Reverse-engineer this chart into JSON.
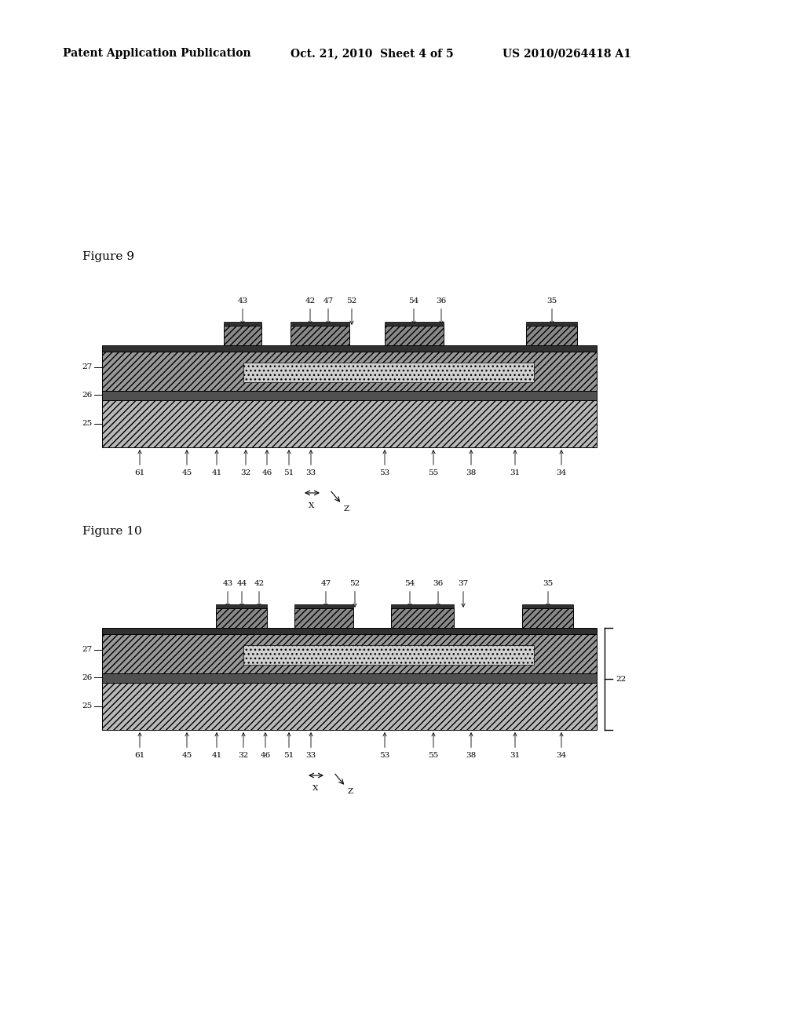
{
  "bg_color": "#ffffff",
  "header_text": "Patent Application Publication",
  "header_date": "Oct. 21, 2010  Sheet 4 of 5",
  "header_patent": "US 2010/0264418 A1",
  "fig9_label": "Figure 9",
  "fig10_label": "Figure 10",
  "gray_light": "#aaaaaa",
  "gray_dark": "#555555",
  "gray_mid": "#888888",
  "black": "#000000"
}
